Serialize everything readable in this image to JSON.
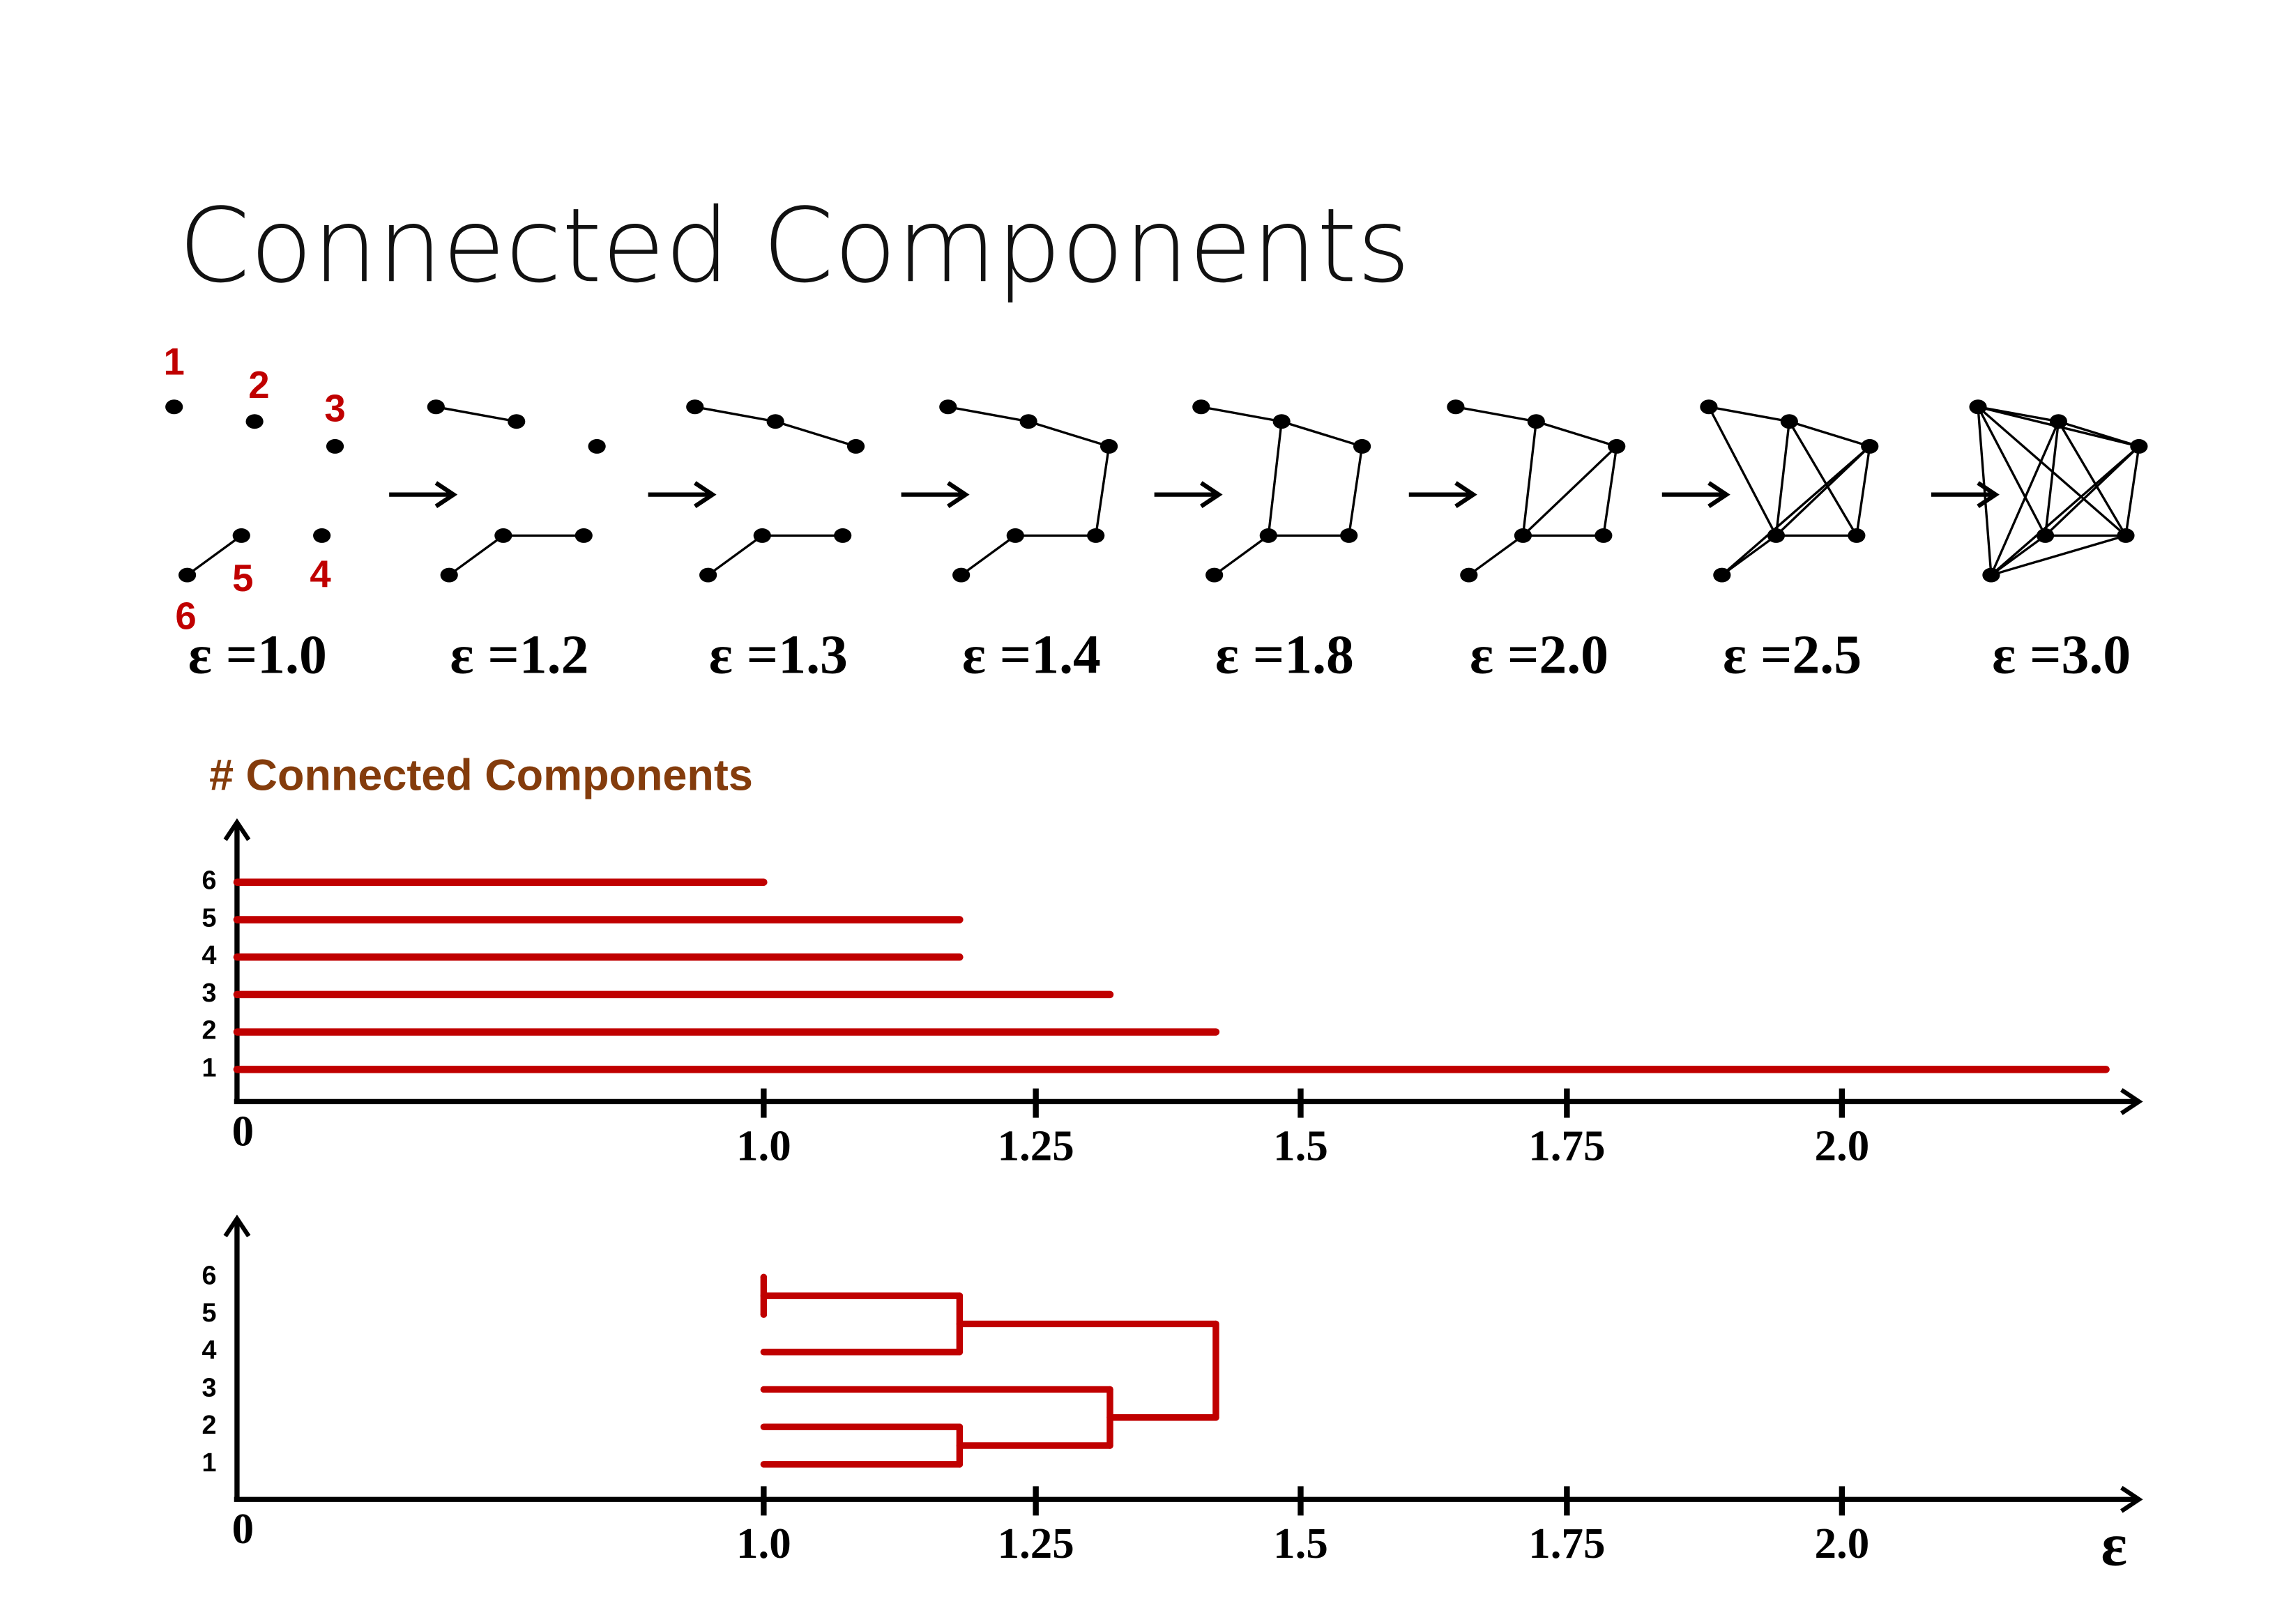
{
  "title": "Connected Components",
  "node_labels": [
    "1",
    "2",
    "3",
    "4",
    "5",
    "6"
  ],
  "graphs": [
    {
      "label": "ε =1.0",
      "edges": [
        [
          "5",
          "6"
        ]
      ]
    },
    {
      "label": "ε =1.2",
      "edges": [
        [
          "1",
          "2"
        ],
        [
          "4",
          "5"
        ],
        [
          "5",
          "6"
        ]
      ]
    },
    {
      "label": "ε =1.3",
      "edges": [
        [
          "1",
          "2"
        ],
        [
          "2",
          "3"
        ],
        [
          "4",
          "5"
        ],
        [
          "5",
          "6"
        ]
      ]
    },
    {
      "label": "ε =1.4",
      "edges": [
        [
          "1",
          "2"
        ],
        [
          "2",
          "3"
        ],
        [
          "3",
          "4"
        ],
        [
          "4",
          "5"
        ],
        [
          "5",
          "6"
        ]
      ]
    },
    {
      "label": "ε =1.8",
      "edges": [
        [
          "1",
          "2"
        ],
        [
          "2",
          "3"
        ],
        [
          "3",
          "4"
        ],
        [
          "4",
          "5"
        ],
        [
          "5",
          "6"
        ],
        [
          "2",
          "5"
        ]
      ]
    },
    {
      "label": "ε =2.0",
      "edges": [
        [
          "1",
          "2"
        ],
        [
          "2",
          "3"
        ],
        [
          "3",
          "4"
        ],
        [
          "4",
          "5"
        ],
        [
          "5",
          "6"
        ],
        [
          "2",
          "5"
        ],
        [
          "3",
          "5"
        ]
      ]
    },
    {
      "label": "ε =2.5",
      "edges": [
        [
          "1",
          "2"
        ],
        [
          "2",
          "3"
        ],
        [
          "3",
          "4"
        ],
        [
          "4",
          "5"
        ],
        [
          "5",
          "6"
        ],
        [
          "2",
          "5"
        ],
        [
          "3",
          "5"
        ],
        [
          "1",
          "5"
        ],
        [
          "2",
          "4"
        ],
        [
          "3",
          "6"
        ]
      ]
    },
    {
      "label": "ε =3.0",
      "edges": [
        [
          "1",
          "2"
        ],
        [
          "1",
          "3"
        ],
        [
          "1",
          "4"
        ],
        [
          "1",
          "5"
        ],
        [
          "1",
          "6"
        ],
        [
          "2",
          "3"
        ],
        [
          "2",
          "4"
        ],
        [
          "2",
          "5"
        ],
        [
          "2",
          "6"
        ],
        [
          "3",
          "4"
        ],
        [
          "3",
          "5"
        ],
        [
          "3",
          "6"
        ],
        [
          "4",
          "5"
        ],
        [
          "4",
          "6"
        ],
        [
          "5",
          "6"
        ]
      ]
    }
  ],
  "chart_data": [
    {
      "type": "barcode",
      "title": "# Connected Components",
      "categories": [
        "1",
        "2",
        "3",
        "4",
        "5",
        "6"
      ],
      "values": [
        2.24,
        1.42,
        1.32,
        1.18,
        1.18,
        1.0
      ],
      "color": "#c00000",
      "xlim": [
        0,
        2.27
      ],
      "xticks": [
        0,
        {
          "value": 1,
          "label": "1.0"
        },
        1.25,
        1.5,
        1.75,
        {
          "value": 2,
          "label": "2.0"
        }
      ]
    },
    {
      "type": "dendrogram",
      "categories": [
        "1",
        "2",
        "3",
        "4",
        "5",
        "6"
      ],
      "start": 1.0,
      "color": "#c00000",
      "merges": [
        {
          "value": 1.0,
          "join": [
            "6",
            "5"
          ]
        },
        {
          "value": 1.18,
          "join": [
            "5",
            "4"
          ]
        },
        {
          "value": 1.18,
          "join": [
            "2",
            "1"
          ]
        },
        {
          "value": 1.32,
          "join": [
            "3",
            "2"
          ]
        },
        {
          "value": 1.42,
          "join": [
            "4",
            "3"
          ]
        }
      ],
      "xlabel": "ε",
      "xlim": [
        0,
        2.27
      ],
      "xticks": [
        0,
        {
          "value": 1,
          "label": "1.0"
        },
        1.25,
        1.5,
        1.75,
        {
          "value": 2,
          "label": "2.0"
        }
      ]
    }
  ]
}
